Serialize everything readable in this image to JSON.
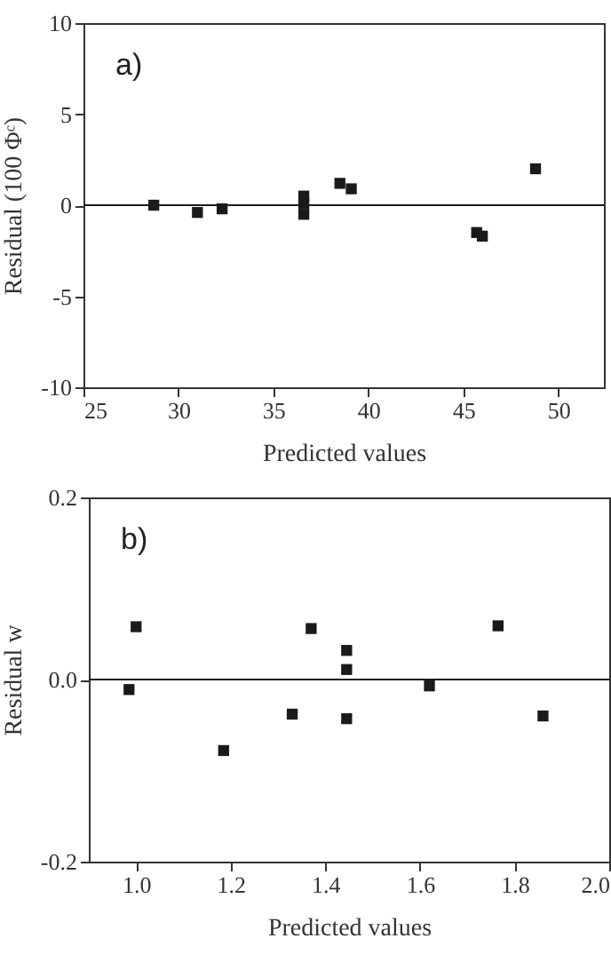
{
  "chart_data": [
    {
      "type": "scatter",
      "xlabel": "Predicted values",
      "ylabel": "Residual (100 Φᶜ)",
      "annotations": [
        "a)"
      ],
      "marker": "square",
      "grid": false,
      "x": [
        28.7,
        31.0,
        32.3,
        36.6,
        36.6,
        36.6,
        38.5,
        39.1,
        45.7,
        46.0,
        48.8
      ],
      "series": [
        {
          "color": "#1a1a1a",
          "values": [
            0,
            -0.4,
            -0.2,
            0.5,
            0.1,
            -0.5,
            1.2,
            0.9,
            -1.5,
            -1.7,
            2.0
          ]
        }
      ],
      "xlim": [
        25,
        52.4
      ],
      "xticks": [
        25,
        30,
        35,
        40,
        45,
        50
      ],
      "ylim": [
        -10,
        10
      ],
      "yticks": [
        -10,
        -5,
        0,
        5,
        10
      ],
      "ref_lines": [
        {
          "axis": "y",
          "value": 0,
          "color": "#1a1a1a"
        }
      ]
    },
    {
      "type": "scatter",
      "xlabel": "Predicted values",
      "ylabel": "Residual w",
      "annotations": [
        "b)"
      ],
      "marker": "square",
      "grid": false,
      "x": [
        0.985,
        1.0,
        1.185,
        1.33,
        1.37,
        1.445,
        1.445,
        1.445,
        1.62,
        1.765,
        1.86
      ],
      "series": [
        {
          "color": "#1a1a1a",
          "values": [
            -0.011,
            0.058,
            -0.078,
            -0.038,
            0.056,
            0.032,
            0.011,
            -0.043,
            -0.007,
            0.059,
            -0.04
          ]
        }
      ],
      "xlim": [
        0.9,
        2.0
      ],
      "xticks": [
        {
          "value": 1.0,
          "label": "1.0"
        },
        {
          "value": 1.2,
          "label": "1.2"
        },
        {
          "value": 1.4,
          "label": "1.4"
        },
        {
          "value": 1.6,
          "label": "1.6"
        },
        {
          "value": 1.8,
          "label": "1.8"
        },
        {
          "value": 2.0,
          "label": "2.0"
        }
      ],
      "ylim": [
        -0.2,
        0.2
      ],
      "yticks": [
        {
          "value": -0.2,
          "label": "-0.2"
        },
        {
          "value": 0,
          "label": "0.0"
        },
        {
          "value": 0.2,
          "label": "0.2"
        }
      ],
      "ref_lines": [
        {
          "axis": "y",
          "value": 0,
          "color": "#1a1a1a"
        }
      ]
    }
  ]
}
